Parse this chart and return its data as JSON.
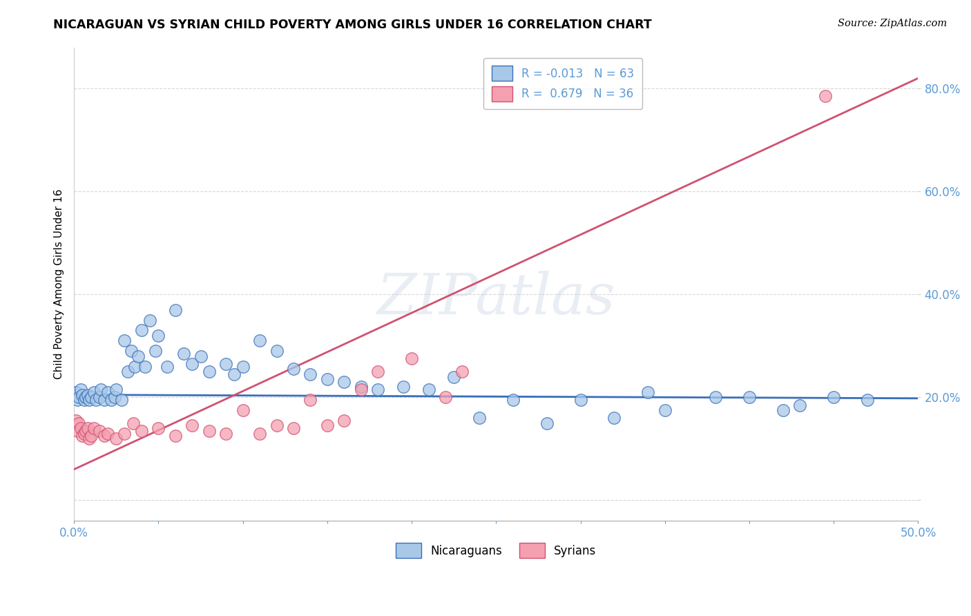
{
  "title": "NICARAGUAN VS SYRIAN CHILD POVERTY AMONG GIRLS UNDER 16 CORRELATION CHART",
  "source": "Source: ZipAtlas.com",
  "ylabel": "Child Poverty Among Girls Under 16",
  "xlim": [
    0.0,
    0.5
  ],
  "ylim": [
    -0.04,
    0.88
  ],
  "xticks": [
    0.0,
    0.05,
    0.1,
    0.15,
    0.2,
    0.25,
    0.3,
    0.35,
    0.4,
    0.45,
    0.5
  ],
  "xticklabels": [
    "0.0%",
    "",
    "",
    "",
    "",
    "",
    "",
    "",
    "",
    "",
    "50.0%"
  ],
  "ytick_positions": [
    0.0,
    0.2,
    0.4,
    0.6,
    0.8
  ],
  "ytick_labels": [
    "",
    "20.0%",
    "40.0%",
    "60.0%",
    "80.0%"
  ],
  "legend_blue_label": "R = -0.013   N = 63",
  "legend_pink_label": "R =  0.679   N = 36",
  "blue_color": "#a8c8e8",
  "pink_color": "#f4a0b0",
  "blue_line_color": "#3a6fba",
  "pink_line_color": "#d05070",
  "watermark_text": "ZIPatlas",
  "background_color": "#ffffff",
  "grid_color": "#cccccc",
  "tick_label_color": "#5b9bd5",
  "blue_R": -0.013,
  "pink_R": 0.679,
  "blue_line_y0": 0.205,
  "blue_line_y1": 0.198,
  "pink_line_x0": 0.0,
  "pink_line_y0": 0.06,
  "pink_line_x1": 0.5,
  "pink_line_y1": 0.82,
  "blue_x": [
    0.001,
    0.002,
    0.003,
    0.004,
    0.005,
    0.006,
    0.007,
    0.008,
    0.009,
    0.01,
    0.012,
    0.013,
    0.015,
    0.016,
    0.018,
    0.02,
    0.022,
    0.024,
    0.025,
    0.028,
    0.03,
    0.032,
    0.034,
    0.036,
    0.038,
    0.04,
    0.042,
    0.045,
    0.048,
    0.05,
    0.055,
    0.06,
    0.065,
    0.07,
    0.075,
    0.08,
    0.09,
    0.095,
    0.1,
    0.11,
    0.12,
    0.13,
    0.14,
    0.15,
    0.16,
    0.17,
    0.18,
    0.195,
    0.21,
    0.225,
    0.24,
    0.26,
    0.28,
    0.3,
    0.32,
    0.34,
    0.35,
    0.38,
    0.4,
    0.42,
    0.43,
    0.45,
    0.47
  ],
  "blue_y": [
    0.21,
    0.195,
    0.2,
    0.215,
    0.205,
    0.195,
    0.2,
    0.205,
    0.195,
    0.2,
    0.21,
    0.195,
    0.2,
    0.215,
    0.195,
    0.21,
    0.195,
    0.2,
    0.215,
    0.195,
    0.31,
    0.25,
    0.29,
    0.26,
    0.28,
    0.33,
    0.26,
    0.35,
    0.29,
    0.32,
    0.26,
    0.37,
    0.285,
    0.265,
    0.28,
    0.25,
    0.265,
    0.245,
    0.26,
    0.31,
    0.29,
    0.255,
    0.245,
    0.235,
    0.23,
    0.22,
    0.215,
    0.22,
    0.215,
    0.24,
    0.16,
    0.195,
    0.15,
    0.195,
    0.16,
    0.21,
    0.175,
    0.2,
    0.2,
    0.175,
    0.185,
    0.2,
    0.195
  ],
  "pink_x": [
    0.001,
    0.002,
    0.003,
    0.004,
    0.005,
    0.006,
    0.007,
    0.008,
    0.009,
    0.01,
    0.012,
    0.015,
    0.018,
    0.02,
    0.025,
    0.03,
    0.035,
    0.04,
    0.05,
    0.06,
    0.07,
    0.08,
    0.09,
    0.1,
    0.11,
    0.12,
    0.13,
    0.14,
    0.15,
    0.16,
    0.17,
    0.18,
    0.2,
    0.22,
    0.23,
    0.445
  ],
  "pink_y": [
    0.155,
    0.135,
    0.15,
    0.14,
    0.125,
    0.13,
    0.135,
    0.14,
    0.12,
    0.125,
    0.14,
    0.135,
    0.125,
    0.13,
    0.12,
    0.13,
    0.15,
    0.135,
    0.14,
    0.125,
    0.145,
    0.135,
    0.13,
    0.175,
    0.13,
    0.145,
    0.14,
    0.195,
    0.145,
    0.155,
    0.215,
    0.25,
    0.275,
    0.2,
    0.25,
    0.785
  ]
}
